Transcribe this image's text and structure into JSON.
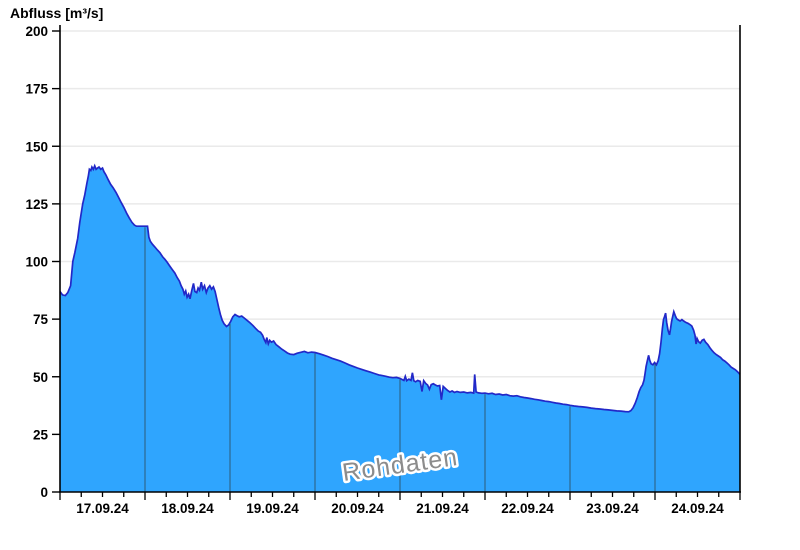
{
  "title": "Abfluss [m³/s]",
  "watermark": "Rohdaten",
  "colors": {
    "background": "#FFFFFF",
    "area_fill": "#2FA5FE",
    "area_line": "#2228C8",
    "day_boundary_line": "#2E5A78",
    "grid": "#EAEAEA",
    "axis": "#000000",
    "tick_label": "#000000",
    "watermark_text": "#8C8C8C",
    "watermark_halo": "#FFFFFF"
  },
  "chart_data": {
    "type": "area",
    "title": "Abfluss [m³/s]",
    "ylabel": "Abfluss [m³/s]",
    "xlabel": "",
    "ylim": [
      0,
      200
    ],
    "y_ticks": [
      0,
      25,
      50,
      75,
      100,
      125,
      150,
      175,
      200
    ],
    "x_categories": [
      "17.09.24",
      "18.09.24",
      "19.09.24",
      "20.09.24",
      "21.09.24",
      "22.09.24",
      "23.09.24",
      "24.09.24"
    ],
    "x_total_hours": 192,
    "x_major_tick_hours": 24,
    "x_minor_tick_hours": 6,
    "grid": "horizontal",
    "legend": "none",
    "annotation": "Rohdaten",
    "series": [
      {
        "name": "Rohdaten",
        "unit": "m³/s",
        "points": [
          [
            0,
            87
          ],
          [
            0.7,
            85.5
          ],
          [
            1.5,
            85.2
          ],
          [
            2.2,
            86.5
          ],
          [
            3,
            89.5
          ],
          [
            3.6,
            100
          ],
          [
            4.2,
            104
          ],
          [
            5,
            110
          ],
          [
            5.6,
            117
          ],
          [
            6.4,
            125
          ],
          [
            7,
            129
          ],
          [
            7.6,
            134
          ],
          [
            8,
            137
          ],
          [
            8.3,
            140
          ],
          [
            8.7,
            139.5
          ],
          [
            9,
            141
          ],
          [
            9.4,
            140
          ],
          [
            9.8,
            141.5
          ],
          [
            10.2,
            140
          ],
          [
            10.6,
            140.5
          ],
          [
            11,
            141
          ],
          [
            11.5,
            140
          ],
          [
            12,
            140.5
          ],
          [
            12.4,
            139
          ],
          [
            13,
            137.5
          ],
          [
            13.6,
            135.5
          ],
          [
            14.3,
            133.5
          ],
          [
            15,
            132
          ],
          [
            15.8,
            130
          ],
          [
            16.5,
            128
          ],
          [
            17.3,
            125.5
          ],
          [
            18,
            123.5
          ],
          [
            18.8,
            121
          ],
          [
            19.5,
            119
          ],
          [
            20.3,
            117
          ],
          [
            21,
            115.8
          ],
          [
            21.6,
            115.3
          ],
          [
            22.5,
            115.3
          ],
          [
            23.4,
            115.3
          ],
          [
            24.3,
            115.3
          ],
          [
            24.7,
            115.3
          ],
          [
            25.1,
            110.5
          ],
          [
            25.5,
            108.8
          ],
          [
            26.1,
            107.5
          ],
          [
            26.8,
            106.3
          ],
          [
            27.5,
            105
          ],
          [
            28.2,
            103.8
          ],
          [
            29,
            102
          ],
          [
            29.6,
            101
          ],
          [
            30.2,
            99.8
          ],
          [
            31,
            98
          ],
          [
            31.7,
            96.5
          ],
          [
            32.4,
            95
          ],
          [
            33.1,
            93
          ],
          [
            33.7,
            91.5
          ],
          [
            34.2,
            89.5
          ],
          [
            34.7,
            88
          ],
          [
            35.1,
            85.8
          ],
          [
            35.5,
            87.2
          ],
          [
            35.9,
            84.5
          ],
          [
            36.3,
            85.8
          ],
          [
            36.7,
            83.8
          ],
          [
            37.2,
            87.5
          ],
          [
            37.7,
            90.5
          ],
          [
            38.1,
            87
          ],
          [
            38.6,
            86.5
          ],
          [
            39,
            88.5
          ],
          [
            39.4,
            87.5
          ],
          [
            39.9,
            91
          ],
          [
            40.3,
            88
          ],
          [
            40.8,
            89.5
          ],
          [
            41.3,
            86.5
          ],
          [
            41.8,
            88.5
          ],
          [
            42.3,
            89.5
          ],
          [
            42.8,
            88
          ],
          [
            43.3,
            89
          ],
          [
            43.8,
            87
          ],
          [
            44.3,
            83.5
          ],
          [
            44.8,
            80
          ],
          [
            45.3,
            77
          ],
          [
            45.8,
            74.5
          ],
          [
            46.3,
            73
          ],
          [
            47,
            71.8
          ],
          [
            47.6,
            72.5
          ],
          [
            48.2,
            74
          ],
          [
            48.8,
            76
          ],
          [
            49.4,
            77
          ],
          [
            50,
            76.5
          ],
          [
            50.6,
            76
          ],
          [
            51.3,
            76.3
          ],
          [
            52,
            75.5
          ],
          [
            52.8,
            74.5
          ],
          [
            53.6,
            73.5
          ],
          [
            54.4,
            72.3
          ],
          [
            55.2,
            71
          ],
          [
            56,
            69.8
          ],
          [
            56.6,
            69.3
          ],
          [
            57.2,
            68
          ],
          [
            57.7,
            66
          ],
          [
            58.1,
            64.8
          ],
          [
            58.4,
            67
          ],
          [
            58.8,
            64.3
          ],
          [
            59.2,
            65.8
          ],
          [
            59.7,
            65
          ],
          [
            60.3,
            65.5
          ],
          [
            61,
            64
          ],
          [
            61.8,
            63
          ],
          [
            62.6,
            62
          ],
          [
            63.4,
            61.2
          ],
          [
            64.2,
            60.3
          ],
          [
            65,
            59.8
          ],
          [
            66,
            59.6
          ],
          [
            67,
            60.2
          ],
          [
            68,
            60.6
          ],
          [
            69,
            61
          ],
          [
            70,
            60.4
          ],
          [
            71,
            60.7
          ],
          [
            72,
            60.5
          ],
          [
            73.2,
            60
          ],
          [
            74.4,
            59.4
          ],
          [
            75.6,
            58.8
          ],
          [
            76.8,
            58
          ],
          [
            78,
            57.4
          ],
          [
            79.2,
            56.8
          ],
          [
            80.4,
            56
          ],
          [
            81.6,
            55.2
          ],
          [
            82.8,
            54.5
          ],
          [
            84,
            53.8
          ],
          [
            85.2,
            53.2
          ],
          [
            86.4,
            52.6
          ],
          [
            87.6,
            52
          ],
          [
            88.8,
            51.4
          ],
          [
            90,
            50.8
          ],
          [
            91,
            50.5
          ],
          [
            92,
            50.2
          ],
          [
            93,
            49.8
          ],
          [
            94,
            49.6
          ],
          [
            95,
            49.7
          ],
          [
            96,
            49.3
          ],
          [
            96.6,
            48.8
          ],
          [
            97.1,
            48.4
          ],
          [
            97.5,
            50.2
          ],
          [
            97.9,
            48.3
          ],
          [
            98.5,
            49
          ],
          [
            99.1,
            48.4
          ],
          [
            99.5,
            51.7
          ],
          [
            99.9,
            48.3
          ],
          [
            100.4,
            47.8
          ],
          [
            101,
            48.4
          ],
          [
            101.7,
            48
          ],
          [
            102.2,
            43.6
          ],
          [
            102.7,
            48.3
          ],
          [
            103.3,
            47
          ],
          [
            103.8,
            46.4
          ],
          [
            104.3,
            44.6
          ],
          [
            104.8,
            46.6
          ],
          [
            105.4,
            47
          ],
          [
            106,
            46.4
          ],
          [
            106.6,
            46
          ],
          [
            107.2,
            46.2
          ],
          [
            107.7,
            40
          ],
          [
            108.2,
            45.8
          ],
          [
            108.9,
            44.8
          ],
          [
            109.5,
            44
          ],
          [
            110.1,
            43.4
          ],
          [
            110.7,
            43.8
          ],
          [
            111.4,
            43.2
          ],
          [
            112.1,
            43.6
          ],
          [
            113,
            43.2
          ],
          [
            114,
            43.4
          ],
          [
            115,
            43
          ],
          [
            116,
            43.2
          ],
          [
            116.8,
            42.9
          ],
          [
            117.1,
            51
          ],
          [
            117.5,
            43.4
          ],
          [
            118.2,
            43
          ],
          [
            119.1,
            42.8
          ],
          [
            120,
            42.9
          ],
          [
            121,
            42.6
          ],
          [
            122,
            42.8
          ],
          [
            123,
            42.3
          ],
          [
            124,
            42.5
          ],
          [
            125,
            42.1
          ],
          [
            126,
            42.3
          ],
          [
            127,
            41.8
          ],
          [
            128,
            41.6
          ],
          [
            129,
            41.8
          ],
          [
            130,
            41.3
          ],
          [
            131,
            41
          ],
          [
            132,
            40.8
          ],
          [
            133,
            40.5
          ],
          [
            134,
            40.2
          ],
          [
            135,
            40
          ],
          [
            136,
            39.7
          ],
          [
            137,
            39.4
          ],
          [
            138,
            39.2
          ],
          [
            139,
            38.9
          ],
          [
            140,
            38.6
          ],
          [
            141,
            38.4
          ],
          [
            142,
            38.1
          ],
          [
            143,
            37.9
          ],
          [
            144,
            37.6
          ],
          [
            145.2,
            37.3
          ],
          [
            146.4,
            37.1
          ],
          [
            147.6,
            36.9
          ],
          [
            148.8,
            36.7
          ],
          [
            150,
            36.4
          ],
          [
            151.2,
            36.2
          ],
          [
            152.4,
            36
          ],
          [
            153.6,
            35.8
          ],
          [
            154.8,
            35.6
          ],
          [
            156,
            35.4
          ],
          [
            157.2,
            35.2
          ],
          [
            158.4,
            35.1
          ],
          [
            159.6,
            34.9
          ],
          [
            160.6,
            34.8
          ],
          [
            161.2,
            35.3
          ],
          [
            161.8,
            36.5
          ],
          [
            162.4,
            38.5
          ],
          [
            163,
            41
          ],
          [
            163.5,
            43.5
          ],
          [
            164,
            45.3
          ],
          [
            164.5,
            46.5
          ],
          [
            164.9,
            48.5
          ],
          [
            165.2,
            51.5
          ],
          [
            165.5,
            54.5
          ],
          [
            165.9,
            57.5
          ],
          [
            166.2,
            59.3
          ],
          [
            166.5,
            57.2
          ],
          [
            166.9,
            55.6
          ],
          [
            167.4,
            55.2
          ],
          [
            167.9,
            56.2
          ],
          [
            168.4,
            55.2
          ],
          [
            168.9,
            57
          ],
          [
            169.3,
            60
          ],
          [
            169.7,
            65
          ],
          [
            170.1,
            71
          ],
          [
            170.4,
            74.8
          ],
          [
            170.7,
            76.2
          ],
          [
            171,
            77.6
          ],
          [
            171.3,
            73.5
          ],
          [
            171.7,
            70
          ],
          [
            172.1,
            68.2
          ],
          [
            172.4,
            71
          ],
          [
            172.7,
            74
          ],
          [
            173,
            76.2
          ],
          [
            173.3,
            78.2
          ],
          [
            173.7,
            76.6
          ],
          [
            174.1,
            75.2
          ],
          [
            174.6,
            74.6
          ],
          [
            175.1,
            74.2
          ],
          [
            175.6,
            74.8
          ],
          [
            176.1,
            74.2
          ],
          [
            176.7,
            73.6
          ],
          [
            177.3,
            73.2
          ],
          [
            177.9,
            72.6
          ],
          [
            178.4,
            72
          ],
          [
            178.9,
            70.2
          ],
          [
            179.3,
            68
          ],
          [
            179.6,
            64.2
          ],
          [
            179.9,
            66.6
          ],
          [
            180.3,
            65.2
          ],
          [
            180.8,
            64.6
          ],
          [
            181.3,
            65.8
          ],
          [
            181.8,
            66.2
          ],
          [
            182.3,
            65
          ],
          [
            182.9,
            64
          ],
          [
            183.5,
            62.6
          ],
          [
            184.1,
            61.4
          ],
          [
            184.7,
            60.4
          ],
          [
            185.3,
            59.6
          ],
          [
            185.9,
            59
          ],
          [
            186.5,
            58.4
          ],
          [
            187.1,
            57.4
          ],
          [
            187.7,
            56.8
          ],
          [
            188.3,
            56
          ],
          [
            188.9,
            55.2
          ],
          [
            189.5,
            54.2
          ],
          [
            190.1,
            53.6
          ],
          [
            190.7,
            53
          ],
          [
            191.3,
            52.2
          ],
          [
            192,
            51
          ]
        ]
      }
    ]
  }
}
